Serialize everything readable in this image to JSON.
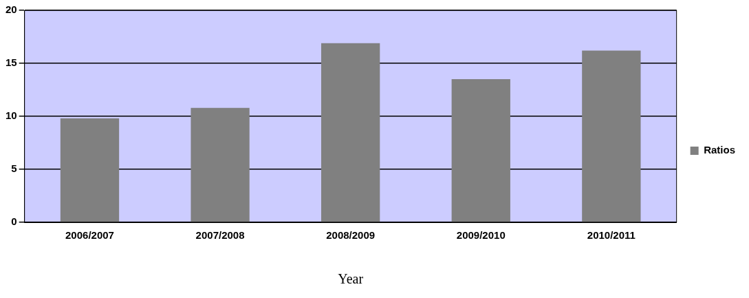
{
  "chart_data": {
    "type": "bar",
    "xlabel": "Year",
    "categories": [
      "2006/2007",
      "2007/2008",
      "2008/2009",
      "2009/2010",
      "2010/2011"
    ],
    "series": [
      {
        "name": "Ratios",
        "color": "#808080",
        "values": [
          9.8,
          10.8,
          16.9,
          13.5,
          16.2
        ]
      }
    ],
    "ylim": [
      0,
      20
    ],
    "yticks": [
      0,
      5,
      10,
      15,
      20
    ],
    "grid": "y",
    "legend": "right"
  }
}
